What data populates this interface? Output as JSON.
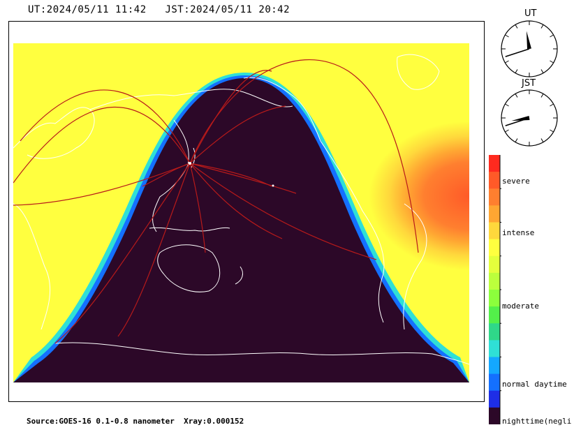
{
  "header": {
    "ut_time": "UT:2024/05/11 11:42",
    "jst_time": "JST:2024/05/11 20:42"
  },
  "clocks": [
    {
      "label": "UT",
      "hour": 11,
      "minute": 42
    },
    {
      "label": "JST",
      "hour": 20,
      "minute": 42
    }
  ],
  "legend": {
    "labels": [
      "severe",
      "intense",
      "moderate",
      "normal daytime",
      "nighttime(negli"
    ],
    "colors_top_to_bottom": [
      "#ff2a1f",
      "#ff5a28",
      "#ff7f2f",
      "#ffa632",
      "#ffd83c",
      "#ffff3f",
      "#e4ff3c",
      "#bcff3c",
      "#8cff3c",
      "#53f04a",
      "#2fd889",
      "#2fe0d6",
      "#14a8ff",
      "#1470ff",
      "#1e2ee6",
      "#2c0828"
    ]
  },
  "map": {
    "night_color": "#2c0828",
    "lowest_absorption_color": "#ffff3f",
    "highest_absorption_color": "#ff5a28",
    "coastline_color": "#ffffff",
    "path_color": "#b81a1a"
  },
  "footer": {
    "source": "Source:GOES-16 0.1-0.8 nanometer",
    "xray": "Xray:0.000152"
  }
}
